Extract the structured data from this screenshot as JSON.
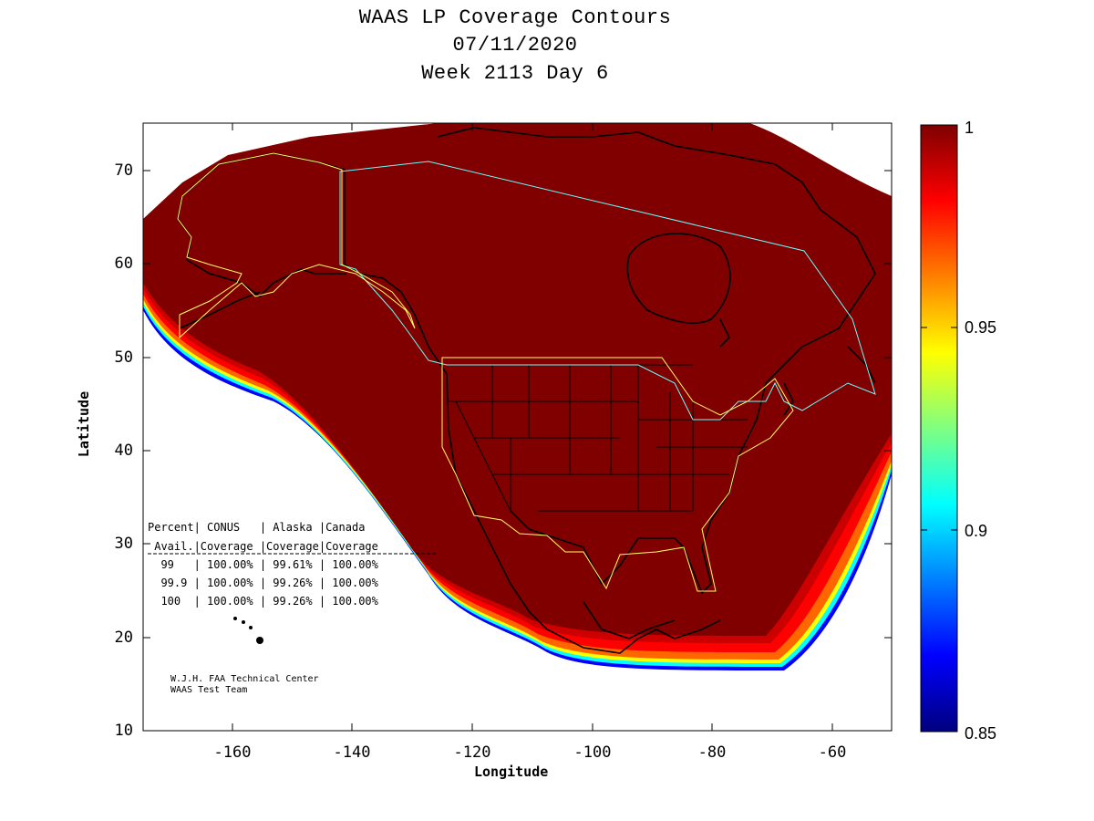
{
  "title": {
    "line1": "WAAS LP Coverage Contours",
    "line2": "07/11/2020",
    "line3": "Week 2113 Day 6"
  },
  "axes": {
    "xlabel": "Longitude",
    "ylabel": "Latitude",
    "xticks": [
      "-160",
      "-140",
      "-120",
      "-100",
      "-80",
      "-60"
    ],
    "yticks": [
      "70",
      "60",
      "50",
      "40",
      "30",
      "20",
      "10"
    ],
    "xlim": [
      -175,
      -50
    ],
    "ylim": [
      10,
      75
    ]
  },
  "colorbar": {
    "ticks": [
      "1",
      "0.95",
      "0.9",
      "0.85"
    ],
    "range": [
      0.85,
      1.0
    ],
    "colormap": "jet"
  },
  "table": {
    "header1": "Percent| CONUS   | Alaska |Canada",
    "header2": " Avail.|Coverage |Coverage|Coverage",
    "rows": [
      "  99   | 100.00% | 99.61% | 100.00%",
      "  99.9 | 100.00% | 99.26% | 100.00%",
      "  100  | 100.00% | 99.26% | 100.00%"
    ]
  },
  "credit": {
    "line1": "W.J.H. FAA Technical Center",
    "line2": "WAAS Test Team"
  },
  "colors": {
    "coverage_full": "#800000",
    "conus_boundary": "#ffff66",
    "canada_boundary": "#66ffff",
    "coastline": "#000000"
  }
}
